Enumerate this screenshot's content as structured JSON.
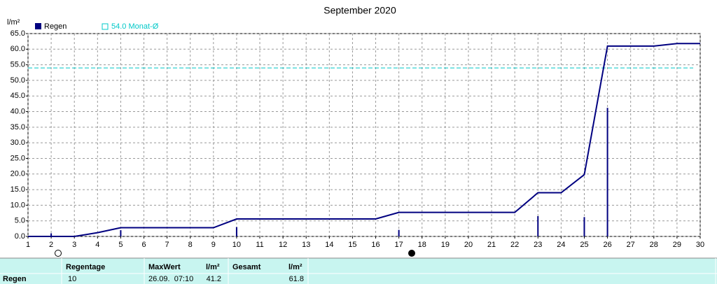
{
  "chart_data": {
    "type": "bar",
    "title": "September 2020",
    "y_label": "l/m²",
    "xlim": [
      1,
      30
    ],
    "xticks": [
      1,
      2,
      3,
      4,
      5,
      6,
      7,
      8,
      9,
      10,
      11,
      12,
      13,
      14,
      15,
      16,
      17,
      18,
      19,
      20,
      21,
      22,
      23,
      24,
      25,
      26,
      27,
      28,
      29,
      30
    ],
    "ylim": [
      0,
      65
    ],
    "yticks": [
      {
        "value": 0,
        "label": "0.0"
      },
      {
        "value": 5,
        "label": "5.0"
      },
      {
        "value": 10,
        "label": "10.0"
      },
      {
        "value": 15,
        "label": "15.0"
      },
      {
        "value": 20,
        "label": "20.0"
      },
      {
        "value": 25,
        "label": "25.0"
      },
      {
        "value": 30,
        "label": "30.0"
      },
      {
        "value": 35,
        "label": "35.0"
      },
      {
        "value": 40,
        "label": "40.0"
      },
      {
        "value": 45,
        "label": "45.0"
      },
      {
        "value": 50,
        "label": "50.0"
      },
      {
        "value": 55,
        "label": "55.0"
      },
      {
        "value": 60,
        "label": "60.0"
      },
      {
        "value": 65,
        "label": "65.0"
      }
    ],
    "grid": true,
    "series": [
      {
        "name": "Regen",
        "color": "#000080",
        "x": [
          2,
          5,
          10,
          17,
          23,
          25,
          26
        ],
        "values": [
          1.0,
          2.0,
          3.0,
          2.1,
          6.5,
          6.2,
          41.2
        ]
      }
    ],
    "cumulative": {
      "color": "#000080",
      "x": [
        1,
        3,
        4,
        5,
        9,
        10,
        16,
        17,
        22,
        23,
        24,
        25,
        26,
        28,
        29,
        30
      ],
      "values": [
        0,
        0,
        1.2,
        2.8,
        2.8,
        5.6,
        5.6,
        7.7,
        7.7,
        14,
        14,
        19.8,
        61,
        61,
        61.8,
        61.8
      ]
    },
    "reference": {
      "label": "54.0 Monat-Ø",
      "value": 54,
      "color": "#00c8c8"
    }
  },
  "table": {
    "headers": [
      "Regentage",
      "MaxWert",
      "l/m²",
      "Gesamt",
      "l/m²"
    ],
    "rows": [
      {
        "label": "Regen",
        "cells": [
          10,
          "26.09.  07:10",
          41.2,
          61.8
        ]
      }
    ]
  }
}
